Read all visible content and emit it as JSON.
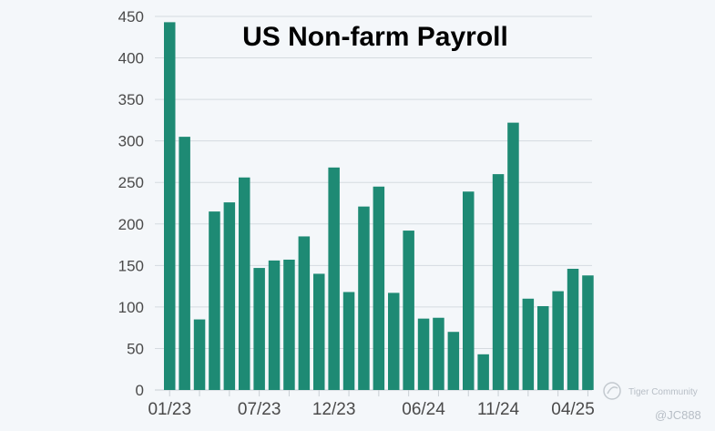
{
  "colors": {
    "bar": "#1e8a74",
    "grid": "#d5dbe0",
    "background": "#f4f7fa"
  },
  "watermark": {
    "community": "Tiger Community",
    "user": "@JC888"
  },
  "chart_data": {
    "type": "bar",
    "title": "US Non-farm Payroll",
    "xlabel": "",
    "ylabel": "",
    "ylim": [
      0,
      450
    ],
    "yticks": [
      0,
      50,
      100,
      150,
      200,
      250,
      300,
      350,
      400,
      450
    ],
    "grid": true,
    "legend": "none",
    "categories": [
      "01/23",
      "02/23",
      "03/23",
      "04/23",
      "05/23",
      "06/23",
      "07/23",
      "08/23",
      "09/23",
      "10/23",
      "11/23",
      "12/23",
      "01/24",
      "02/24",
      "03/24",
      "04/24",
      "05/24",
      "06/24",
      "07/24",
      "08/24",
      "09/24",
      "10/24",
      "11/24",
      "12/24",
      "01/25",
      "02/25",
      "03/25",
      "04/25",
      "05/25"
    ],
    "tick_labels": [
      "01/23",
      "07/23",
      "12/23",
      "06/24",
      "11/24",
      "04/25"
    ],
    "values": [
      443,
      305,
      85,
      215,
      226,
      256,
      147,
      156,
      157,
      185,
      140,
      268,
      118,
      221,
      245,
      117,
      192,
      86,
      87,
      70,
      239,
      43,
      260,
      322,
      110,
      101,
      119,
      146,
      138
    ]
  }
}
